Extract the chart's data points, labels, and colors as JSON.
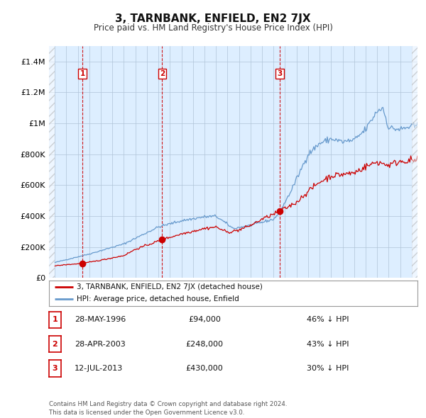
{
  "title": "3, TARNBANK, ENFIELD, EN2 7JX",
  "subtitle": "Price paid vs. HM Land Registry's House Price Index (HPI)",
  "ylim": [
    0,
    1500000
  ],
  "yticks": [
    0,
    200000,
    400000,
    600000,
    800000,
    1000000,
    1200000,
    1400000
  ],
  "ytick_labels": [
    "£0",
    "£200K",
    "£400K",
    "£600K",
    "£800K",
    "£1M",
    "£1.2M",
    "£1.4M"
  ],
  "sale_years": [
    1996.41,
    2003.33,
    2013.54
  ],
  "sale_prices": [
    94000,
    248000,
    430000
  ],
  "sale_labels": [
    "1",
    "2",
    "3"
  ],
  "legend_house": "3, TARNBANK, ENFIELD, EN2 7JX (detached house)",
  "legend_hpi": "HPI: Average price, detached house, Enfield",
  "table_rows": [
    [
      "1",
      "28-MAY-1996",
      "£94,000",
      "46% ↓ HPI"
    ],
    [
      "2",
      "28-APR-2003",
      "£248,000",
      "43% ↓ HPI"
    ],
    [
      "3",
      "12-JUL-2013",
      "£430,000",
      "30% ↓ HPI"
    ]
  ],
  "footer": "Contains HM Land Registry data © Crown copyright and database right 2024.\nThis data is licensed under the Open Government Licence v3.0.",
  "house_color": "#cc0000",
  "hpi_color": "#6699cc",
  "vline_color": "#cc0000",
  "bg_plot": "#ddeeff",
  "background_color": "#ffffff",
  "grid_color": "#b0c4d8"
}
